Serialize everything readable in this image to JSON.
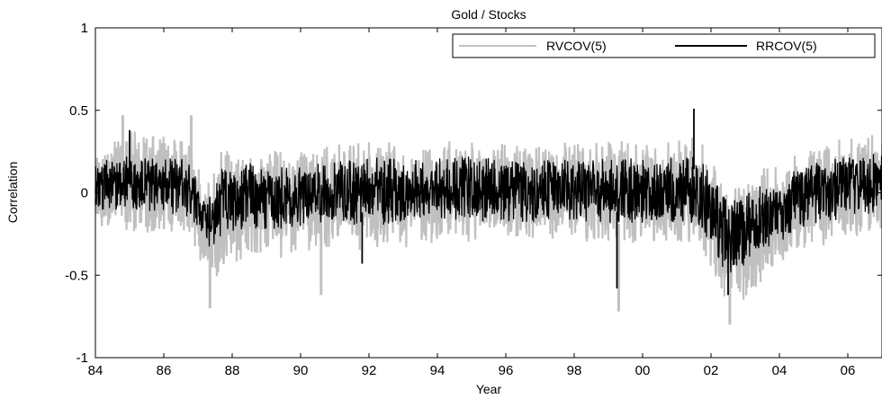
{
  "chart_data": {
    "type": "line",
    "title": "Gold / Stocks",
    "xlabel": "Year",
    "ylabel": "Correlation",
    "xlim": [
      1984,
      2007
    ],
    "ylim": [
      -1,
      1
    ],
    "x_ticks": [
      {
        "value": 1984,
        "label": "84"
      },
      {
        "value": 1986,
        "label": "86"
      },
      {
        "value": 1988,
        "label": "88"
      },
      {
        "value": 1990,
        "label": "90"
      },
      {
        "value": 1992,
        "label": "92"
      },
      {
        "value": 1994,
        "label": "94"
      },
      {
        "value": 1996,
        "label": "96"
      },
      {
        "value": 1998,
        "label": "98"
      },
      {
        "value": 2000,
        "label": "00"
      },
      {
        "value": 2002,
        "label": "02"
      },
      {
        "value": 2004,
        "label": "04"
      },
      {
        "value": 2006,
        "label": "06"
      }
    ],
    "y_ticks": [
      {
        "value": 1,
        "label": "1"
      },
      {
        "value": 0.5,
        "label": "0.5"
      },
      {
        "value": 0,
        "label": "0"
      },
      {
        "value": -0.5,
        "label": "-0.5"
      },
      {
        "value": -1,
        "label": "-1"
      }
    ],
    "grid": false,
    "legend_position": "top-right",
    "series": [
      {
        "name": "RVCOV(5)",
        "color": "#c0c0c0",
        "x": [
          1984.0,
          1985.0,
          1986.0,
          1986.8,
          1987.2,
          1987.4,
          1987.7,
          1988.5,
          1989.5,
          1990.5,
          1991.5,
          1992.5,
          1993.5,
          1994.5,
          1995.5,
          1996.5,
          1997.5,
          1998.5,
          1999.5,
          2000.5,
          2001.5,
          2002.0,
          2002.3,
          2002.6,
          2003.0,
          2003.5,
          2004.0,
          2004.5,
          2005.0,
          2005.5,
          2006.0,
          2006.5,
          2007.0
        ],
        "upper": [
          0.28,
          0.38,
          0.35,
          0.32,
          0.05,
          0.12,
          0.3,
          0.28,
          0.26,
          0.28,
          0.3,
          0.32,
          0.3,
          0.32,
          0.34,
          0.3,
          0.32,
          0.3,
          0.32,
          0.3,
          0.34,
          0.25,
          0.1,
          0.05,
          0.1,
          0.15,
          0.2,
          0.25,
          0.3,
          0.32,
          0.34,
          0.36,
          0.35
        ],
        "lower": [
          -0.2,
          -0.25,
          -0.25,
          -0.3,
          -0.5,
          -0.6,
          -0.45,
          -0.4,
          -0.4,
          -0.38,
          -0.35,
          -0.35,
          -0.32,
          -0.3,
          -0.3,
          -0.3,
          -0.3,
          -0.3,
          -0.32,
          -0.3,
          -0.32,
          -0.45,
          -0.65,
          -0.7,
          -0.65,
          -0.55,
          -0.45,
          -0.4,
          -0.35,
          -0.3,
          -0.28,
          -0.26,
          -0.25
        ],
        "spikes": [
          [
            1986.8,
            0.47
          ],
          [
            1987.35,
            -0.7
          ],
          [
            1990.6,
            -0.62
          ],
          [
            1999.3,
            -0.72
          ],
          [
            2002.55,
            -0.8
          ],
          [
            1984.8,
            0.47
          ]
        ]
      },
      {
        "name": "RRCOV(5)",
        "color": "#000000",
        "x": [
          1984.0,
          1985.0,
          1986.0,
          1986.8,
          1987.2,
          1987.4,
          1987.7,
          1988.5,
          1989.5,
          1990.5,
          1991.5,
          1992.5,
          1993.5,
          1994.5,
          1995.5,
          1996.5,
          1997.5,
          1998.5,
          1999.5,
          2000.5,
          2001.5,
          2002.0,
          2002.3,
          2002.6,
          2003.0,
          2003.5,
          2004.0,
          2004.5,
          2005.0,
          2005.5,
          2006.0,
          2006.5,
          2007.0
        ],
        "upper": [
          0.18,
          0.25,
          0.22,
          0.2,
          -0.05,
          0.02,
          0.18,
          0.18,
          0.16,
          0.18,
          0.2,
          0.22,
          0.2,
          0.22,
          0.22,
          0.2,
          0.22,
          0.2,
          0.22,
          0.2,
          0.24,
          0.15,
          0.02,
          -0.05,
          0.0,
          0.05,
          0.1,
          0.15,
          0.2,
          0.22,
          0.24,
          0.25,
          0.24
        ],
        "lower": [
          -0.1,
          -0.12,
          -0.12,
          -0.15,
          -0.3,
          -0.35,
          -0.25,
          -0.22,
          -0.22,
          -0.2,
          -0.2,
          -0.2,
          -0.18,
          -0.18,
          -0.18,
          -0.18,
          -0.18,
          -0.18,
          -0.2,
          -0.18,
          -0.2,
          -0.3,
          -0.45,
          -0.5,
          -0.45,
          -0.38,
          -0.3,
          -0.25,
          -0.2,
          -0.18,
          -0.16,
          -0.15,
          -0.14
        ],
        "spikes": [
          [
            2001.5,
            0.51
          ],
          [
            1999.25,
            -0.58
          ],
          [
            1991.8,
            -0.43
          ],
          [
            2002.5,
            -0.62
          ],
          [
            1985.0,
            0.38
          ]
        ]
      }
    ]
  }
}
